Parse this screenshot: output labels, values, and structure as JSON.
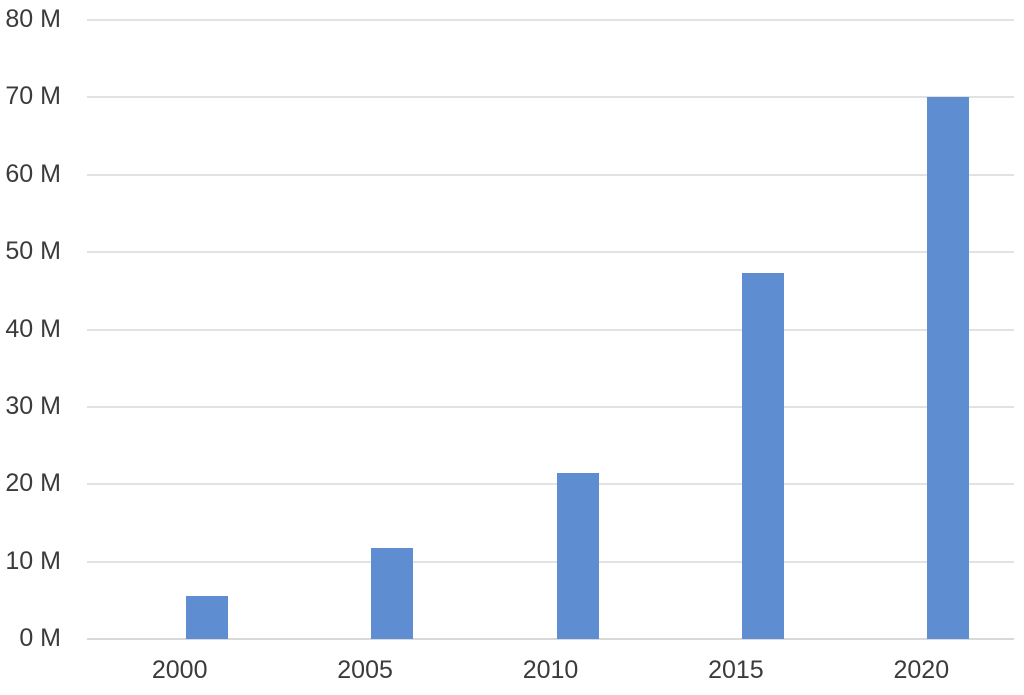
{
  "chart_data": {
    "type": "bar",
    "categories": [
      "2000",
      "2005",
      "2010",
      "2015",
      "2020"
    ],
    "values": [
      5.5,
      11.7,
      21.5,
      47.3,
      70
    ],
    "title": "",
    "xlabel": "",
    "ylabel": "",
    "ylim": [
      0,
      80
    ],
    "y_tick_step": 10,
    "y_tick_labels": [
      "0 M",
      "10 M",
      "20 M",
      "30 M",
      "40 M",
      "50 M",
      "60 M",
      "70 M",
      "80 M"
    ],
    "grid": true,
    "legend": false,
    "colors": {
      "bar": "#5E8ED1",
      "gridline": "#E2E2E2",
      "baseline": "#D9D9D9",
      "text": "#3B3B3B",
      "background": "#FFFFFF"
    }
  }
}
